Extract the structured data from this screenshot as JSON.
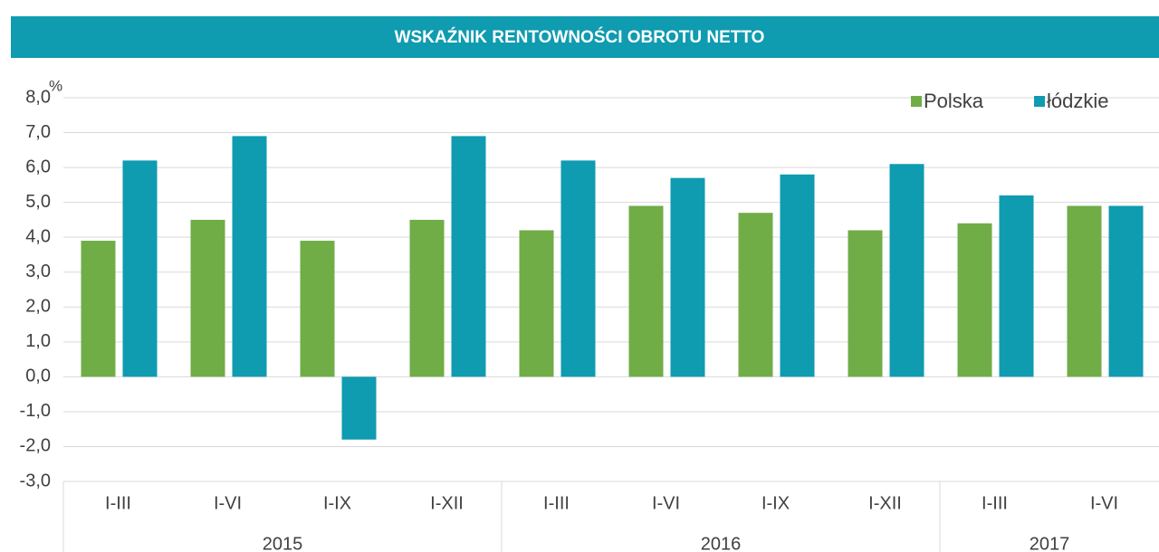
{
  "chart_data": {
    "type": "bar",
    "title": "WSKAŹNIK  RENTOWNOŚCI  OBROTU  NETTO",
    "y_unit": "%",
    "categories": [
      "I-III",
      "I-VI",
      "I-IX",
      "I-XII",
      "I-III",
      "I-VI",
      "I-IX",
      "I-XII",
      "I-III",
      "I-VI"
    ],
    "category_groups": [
      {
        "label": "2015",
        "span": 4
      },
      {
        "label": "2016",
        "span": 4
      },
      {
        "label": "2017",
        "span": 2
      }
    ],
    "series": [
      {
        "name": "Polska",
        "color": "#70ad47",
        "values": [
          3.9,
          4.5,
          3.9,
          4.5,
          4.2,
          4.9,
          4.7,
          4.2,
          4.4,
          4.9
        ]
      },
      {
        "name": "łódzkie",
        "color": "#0f9bb0",
        "values": [
          6.2,
          6.9,
          -1.8,
          6.9,
          6.2,
          5.7,
          5.8,
          6.1,
          5.2,
          4.9
        ]
      }
    ],
    "ylim": [
      -3,
      8
    ],
    "yticks": [
      {
        "value": -3,
        "label": "-3,0"
      },
      {
        "value": -2,
        "label": "-2,0"
      },
      {
        "value": -1,
        "label": "-1,0"
      },
      {
        "value": 0,
        "label": "0,0"
      },
      {
        "value": 1,
        "label": "1,0"
      },
      {
        "value": 2,
        "label": "2,0"
      },
      {
        "value": 3,
        "label": "3,0"
      },
      {
        "value": 4,
        "label": "4,0"
      },
      {
        "value": 5,
        "label": "5,0"
      },
      {
        "value": 6,
        "label": "6,0"
      },
      {
        "value": 7,
        "label": "7,0"
      },
      {
        "value": 8,
        "label": "8,0"
      }
    ],
    "grid": true,
    "legend": "top-right"
  }
}
